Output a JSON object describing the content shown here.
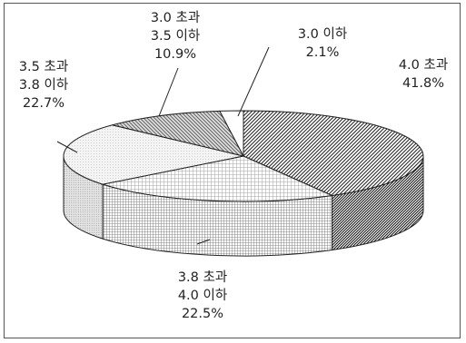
{
  "chart_data": {
    "type": "pie",
    "style": "3d",
    "title": "",
    "slices": [
      {
        "label_lines": [
          "4.0 초과",
          "41.8%"
        ],
        "value": 41.8,
        "pattern": "diagonal-hatch"
      },
      {
        "label_lines": [
          "3.8 초과",
          "4.0 이하",
          "22.5%"
        ],
        "value": 22.5,
        "pattern": "grid"
      },
      {
        "label_lines": [
          "3.5 초과",
          "3.8 이하",
          "22.7%"
        ],
        "value": 22.7,
        "pattern": "fine-dots"
      },
      {
        "label_lines": [
          "3.0 초과",
          "3.5 이하",
          "10.9%"
        ],
        "value": 10.9,
        "pattern": "reverse-hatch"
      },
      {
        "label_lines": [
          "3.0 이하",
          "2.1%"
        ],
        "value": 2.1,
        "pattern": "solid-white"
      }
    ]
  }
}
